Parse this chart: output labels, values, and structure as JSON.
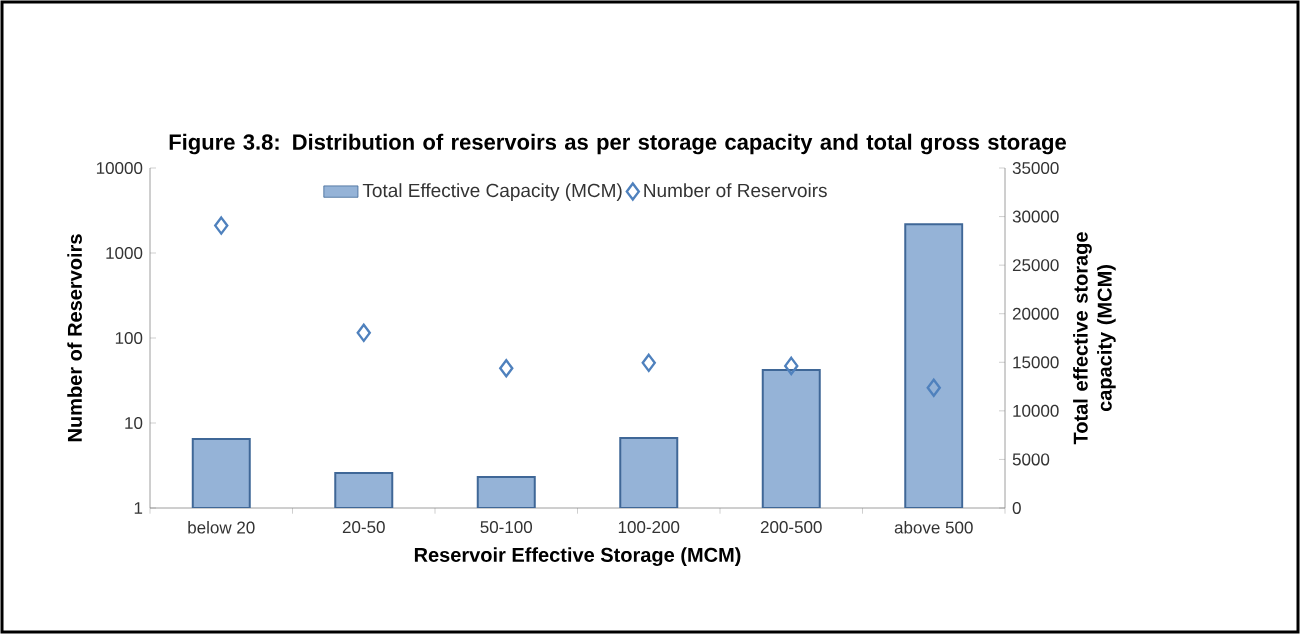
{
  "chart_data": {
    "type": "bar",
    "title": "Figure 3.8: Distribution of reservoirs as per storage capacity and total gross storage",
    "xlabel": "Reservoir Effective Storage (MCM)",
    "ylabel": "Number of Reservoirs",
    "y2label": "Total effective storage capacity (MCM)",
    "categories": [
      "below 20",
      "20-50",
      "50-100",
      "100-200",
      "200-500",
      "above 500"
    ],
    "series": [
      {
        "name": "Total Effective Capacity (MCM)",
        "axis": "y2",
        "color": "#95b3d7",
        "values": [
          7100,
          3600,
          3200,
          7200,
          14200,
          29200
        ]
      },
      {
        "name": "Number of Reservoirs",
        "type": "scatter",
        "marker": "diamond",
        "color": "#4f81bd",
        "values": [
          2100,
          115,
          44,
          51,
          47,
          26
        ]
      }
    ],
    "log": "y",
    "ylim": [
      1,
      10000
    ],
    "yticks": [
      1,
      10,
      100,
      1000,
      10000
    ],
    "y2lim": [
      0,
      35000
    ],
    "y2ticks": [
      0,
      5000,
      10000,
      15000,
      20000,
      25000,
      30000,
      35000
    ],
    "legend": "top",
    "grid": false
  }
}
